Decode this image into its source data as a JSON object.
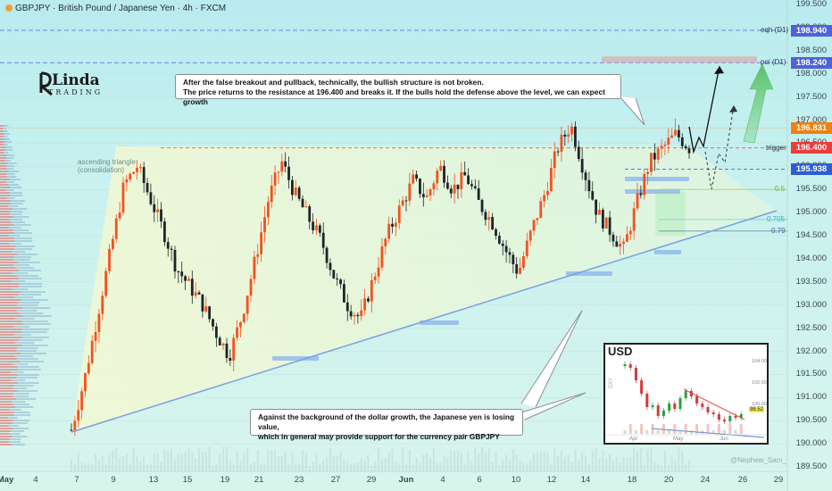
{
  "header": {
    "title": "GBPJPY · British Pound / Japanese Yen · 4h · FXCM",
    "dot_color": "#f29d38"
  },
  "logo": {
    "text": "Linda",
    "sub": "TRADING"
  },
  "chart_data": {
    "type": "candlestick",
    "symbol": "GBPJPY",
    "timeframe": "4h",
    "ylim": [
      189.5,
      199.5
    ],
    "y_ticks": [
      199.5,
      199.0,
      198.5,
      198.0,
      197.5,
      197.0,
      196.5,
      196.0,
      195.5,
      195.0,
      194.5,
      194.0,
      193.5,
      193.0,
      192.5,
      192.0,
      191.5,
      191.0,
      190.5,
      190.0,
      189.5
    ],
    "x_ticks": [
      "May",
      "4",
      "7",
      "9",
      "13",
      "15",
      "19",
      "21",
      "23",
      "27",
      "29",
      "Jun",
      "4",
      "6",
      "10",
      "12",
      "14",
      "18",
      "20",
      "24",
      "26",
      "29"
    ],
    "colors": {
      "up": "#f4511e",
      "down": "#1f2328",
      "trendline": "#7aa0e0",
      "level": "#e08a4c",
      "eqh": "#6f7fe6"
    },
    "swing_path": [
      190.3,
      191.4,
      192.8,
      194.2,
      195.6,
      196.0,
      195.3,
      194.6,
      193.8,
      193.4,
      193.0,
      192.4,
      191.9,
      192.8,
      194.0,
      195.3,
      196.1,
      195.4,
      194.9,
      194.4,
      193.6,
      193.0,
      192.7,
      193.6,
      194.5,
      195.1,
      195.7,
      195.3,
      196.0,
      195.5,
      195.8,
      195.2,
      194.8,
      194.2,
      193.7,
      194.6,
      195.4,
      196.4,
      196.9,
      195.9,
      195.0,
      194.6,
      194.2,
      195.2,
      196.1,
      196.4,
      196.7,
      196.4
    ],
    "levels": {
      "eqh_d1": {
        "price": 198.94,
        "label": "eqh (D1)",
        "tag": "198.940"
      },
      "poi_d1": {
        "price": 198.24,
        "label": "poi (D1)",
        "tag": "198.240"
      },
      "last_price": {
        "price": 196.831,
        "tag": "196.831"
      },
      "trigger": {
        "price": 196.4,
        "label": "trigger",
        "tag": "196.400"
      },
      "support_195938": {
        "price": 195.938,
        "tag": "195.938"
      },
      "fib_05": {
        "price": 195.5,
        "label": "0.5"
      },
      "fib_0705": {
        "price": 194.85,
        "label": "0.705"
      },
      "fib_079": {
        "price": 194.6,
        "label": "0.79"
      }
    },
    "annotations": {
      "triangle": "ascending triangle\n(consolidation)"
    }
  },
  "notes": {
    "top": "After the false breakout and pullback, technically, the bullish structure is not broken.\nThe price returns to the resistance at 196.400 and breaks it. If the bulls hold the defense above the level, we can expect growth",
    "bottom": "Against the background of the dollar growth, the Japanese yen is losing value,\nwhich in general may provide support for the currency pair GBPJPY"
  },
  "inset": {
    "title": "USD",
    "symbol_label": "DXY",
    "price_tag": "98.52",
    "y_ticks": [
      "104.00",
      "102.00",
      "100.00"
    ],
    "x_ticks": [
      "Apr",
      "May",
      "Jun"
    ]
  },
  "watermark": "@Nephew_Sam_"
}
